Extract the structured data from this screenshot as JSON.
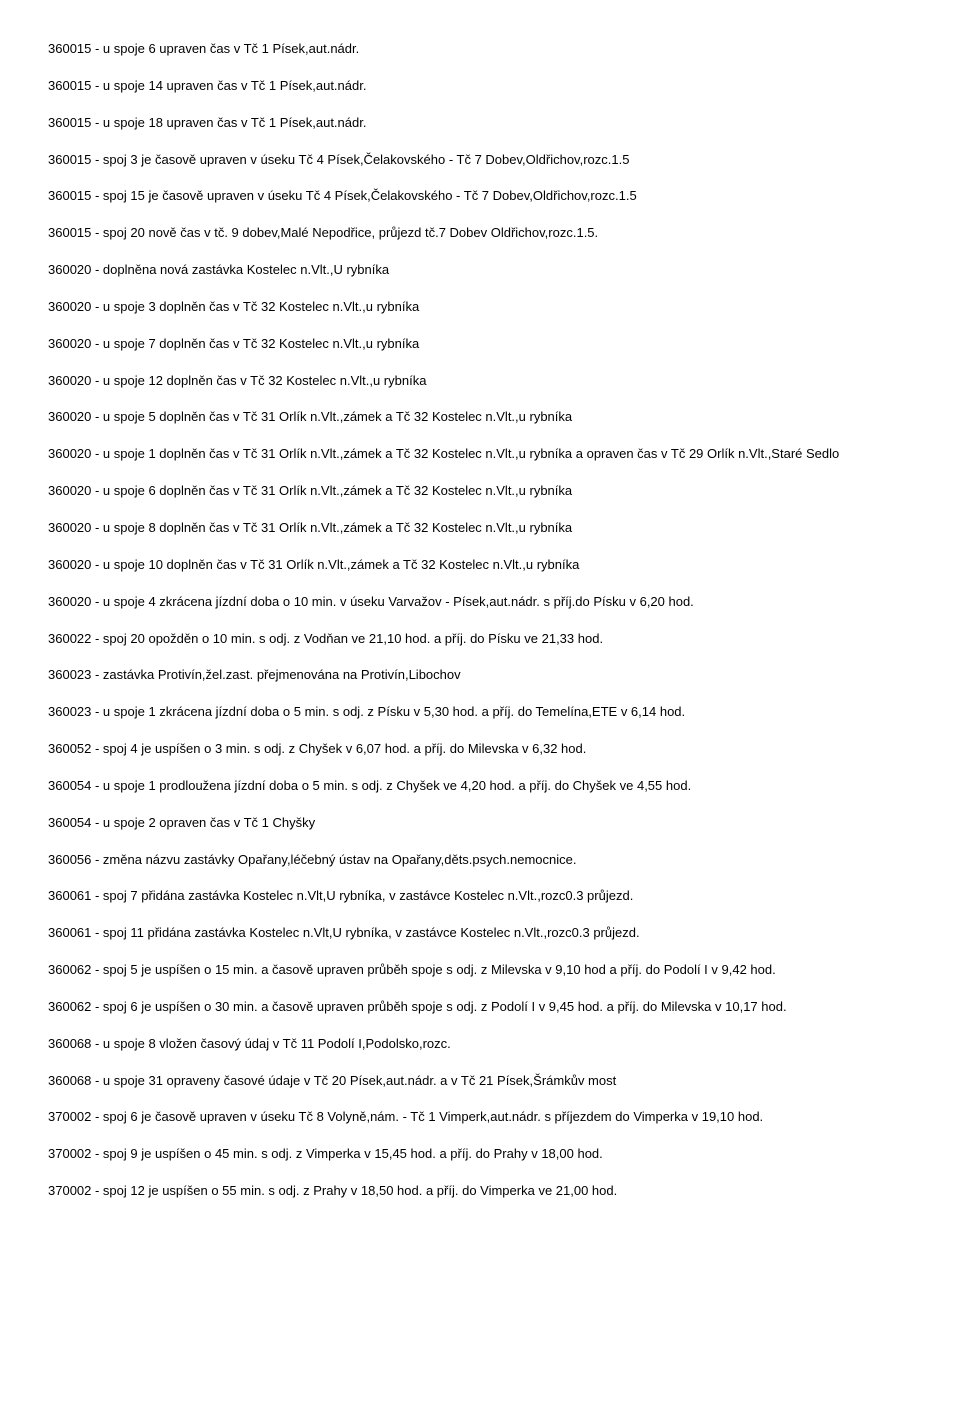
{
  "lines": [
    "360015 - u spoje 6 upraven čas v Tč 1 Písek,aut.nádr.",
    "360015 - u spoje 14 upraven čas v Tč 1 Písek,aut.nádr.",
    "360015 - u spoje 18 upraven čas v Tč 1 Písek,aut.nádr.",
    "360015 - spoj 3 je časově upraven v úseku Tč 4 Písek,Čelakovského - Tč 7 Dobev,Oldřichov,rozc.1.5",
    "360015 - spoj 15 je časově upraven v úseku Tč 4 Písek,Čelakovského - Tč 7 Dobev,Oldřichov,rozc.1.5",
    "360015 - spoj 20 nově čas v tč. 9 dobev,Malé Nepodřice, průjezd tč.7 Dobev Oldřichov,rozc.1.5.",
    "360020 - doplněna nová zastávka Kostelec n.Vlt.,U rybníka",
    "360020 - u spoje 3 doplněn čas v Tč 32 Kostelec n.Vlt.,u rybníka",
    "360020 - u spoje 7 doplněn čas v Tč 32 Kostelec n.Vlt.,u rybníka",
    "360020 - u spoje 12 doplněn čas v Tč 32 Kostelec n.Vlt.,u rybníka",
    "360020 - u spoje 5 doplněn čas v Tč 31 Orlík n.Vlt.,zámek a Tč 32 Kostelec n.Vlt.,u rybníka",
    "360020 - u spoje 1 doplněn čas v Tč 31 Orlík n.Vlt.,zámek a Tč 32 Kostelec n.Vlt.,u rybníka a opraven čas v  Tč 29 Orlík n.Vlt.,Staré Sedlo",
    "360020 - u spoje 6 doplněn čas v Tč 31 Orlík n.Vlt.,zámek a Tč 32 Kostelec n.Vlt.,u rybníka",
    "360020 - u spoje 8 doplněn čas v Tč 31 Orlík n.Vlt.,zámek a Tč 32 Kostelec n.Vlt.,u rybníka",
    "360020 - u spoje 10 doplněn čas v Tč 31 Orlík n.Vlt.,zámek a Tč 32 Kostelec n.Vlt.,u rybníka",
    "360020 - u spoje 4 zkrácena jízdní doba o 10 min. v úseku Varvažov - Písek,aut.nádr. s příj.do Písku v 6,20 hod.",
    "360022 - spoj 20 opožděn o 10 min. s odj. z Vodňan ve 21,10 hod. a příj. do Písku ve 21,33 hod.",
    "360023 - zastávka Protivín,žel.zast. přejmenována na Protivín,Libochov",
    "360023 - u spoje 1 zkrácena jízdní doba o 5 min. s odj. z Písku v 5,30 hod. a příj. do Temelína,ETE v 6,14 hod.",
    "360052 - spoj 4 je uspíšen o 3 min. s odj. z Chyšek v 6,07 hod. a příj. do Milevska v 6,32 hod.",
    "360054 - u spoje 1 prodloužena jízdní doba o 5 min. s odj. z Chyšek ve 4,20 hod. a příj. do Chyšek ve 4,55 hod.",
    "360054 - u spoje 2 opraven čas v Tč 1 Chyšky",
    "360056 - změna názvu zastávky Opařany,léčebný ústav na Opařany,děts.psych.nemocnice.",
    "360061 - spoj 7 přidána zastávka Kostelec n.Vlt,U rybníka, v zastávce Kostelec n.Vlt.,rozc0.3 průjezd.",
    "360061 - spoj 11 přidána zastávka Kostelec n.Vlt,U rybníka, v zastávce Kostelec n.Vlt.,rozc0.3 průjezd.",
    "360062 - spoj 5 je uspíšen o 15 min. a časově upraven průběh spoje s odj. z Milevska v 9,10 hod a příj. do Podolí I v 9,42 hod.",
    "360062 - spoj 6 je uspíšen o 30 min. a časově upraven průběh spoje s odj. z Podolí I v 9,45 hod. a příj. do Milevska v 10,17 hod.",
    "360068 - u spoje 8 vložen časový údaj v Tč 11 Podolí I,Podolsko,rozc.",
    "360068 - u spoje 31 opraveny časové údaje v Tč 20 Písek,aut.nádr. a v Tč 21 Písek,Šrámkův most",
    "370002 - spoj 6 je časově upraven v úseku Tč 8 Volyně,nám. - Tč 1 Vimperk,aut.nádr. s příjezdem do Vimperka v 19,10 hod.",
    "370002 - spoj 9 je uspíšen o 45 min. s odj. z Vimperka v 15,45 hod. a příj. do Prahy v 18,00 hod.",
    "370002 - spoj 12 je uspíšen o 55 min. s odj. z Prahy v 18,50 hod. a příj. do Vimperka ve 21,00 hod."
  ]
}
